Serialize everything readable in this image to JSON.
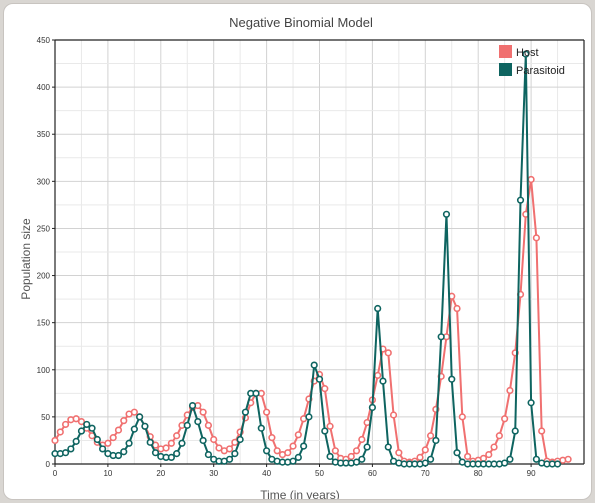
{
  "chart_data": {
    "type": "line",
    "title": "Negative Binomial Model",
    "xlabel": "Time (in years)",
    "ylabel": "Population size",
    "xlim": [
      0,
      100
    ],
    "ylim": [
      0,
      450
    ],
    "x_ticks": [
      0,
      10,
      20,
      30,
      40,
      50,
      60,
      70,
      80,
      90
    ],
    "y_ticks": [
      0,
      50,
      100,
      150,
      200,
      250,
      300,
      350,
      400,
      450
    ],
    "grid": true,
    "legend_position": "top-right",
    "series": [
      {
        "name": "Host",
        "color": "#f07070",
        "values": [
          25,
          34,
          42,
          47,
          48,
          45,
          38,
          30,
          23,
          20,
          22,
          28,
          36,
          46,
          53,
          55,
          50,
          40,
          29,
          20,
          16,
          17,
          22,
          30,
          41,
          52,
          60,
          62,
          55,
          41,
          26,
          17,
          14,
          16,
          23,
          34,
          49,
          65,
          75,
          75,
          55,
          28,
          14,
          10,
          12,
          19,
          31,
          48,
          69,
          88,
          95,
          80,
          40,
          14,
          6,
          5,
          8,
          14,
          26,
          44,
          68,
          94,
          122,
          118,
          52,
          12,
          3,
          2,
          3,
          7,
          15,
          30,
          58,
          93,
          135,
          178,
          165,
          50,
          8,
          3,
          4,
          6,
          10,
          18,
          30,
          48,
          78,
          118,
          180,
          265,
          302,
          240,
          35,
          3,
          2,
          3,
          4,
          5
        ]
      },
      {
        "name": "Parasitoid",
        "color": "#0e6460",
        "values": [
          11,
          11,
          12,
          16,
          24,
          35,
          42,
          38,
          26,
          16,
          11,
          9,
          9,
          13,
          22,
          37,
          50,
          40,
          23,
          12,
          8,
          7,
          7,
          11,
          22,
          41,
          62,
          45,
          25,
          10,
          5,
          3,
          3,
          5,
          11,
          26,
          55,
          75,
          75,
          38,
          14,
          5,
          3,
          2,
          2,
          3,
          7,
          19,
          50,
          105,
          90,
          35,
          8,
          2,
          1,
          1,
          1,
          2,
          5,
          18,
          60,
          165,
          88,
          18,
          3,
          1,
          0,
          0,
          0,
          0,
          1,
          5,
          25,
          135,
          265,
          90,
          12,
          2,
          0,
          0,
          0,
          0,
          0,
          0,
          0,
          1,
          5,
          35,
          280,
          435,
          65,
          5,
          1,
          0,
          0,
          0
        ]
      }
    ]
  }
}
